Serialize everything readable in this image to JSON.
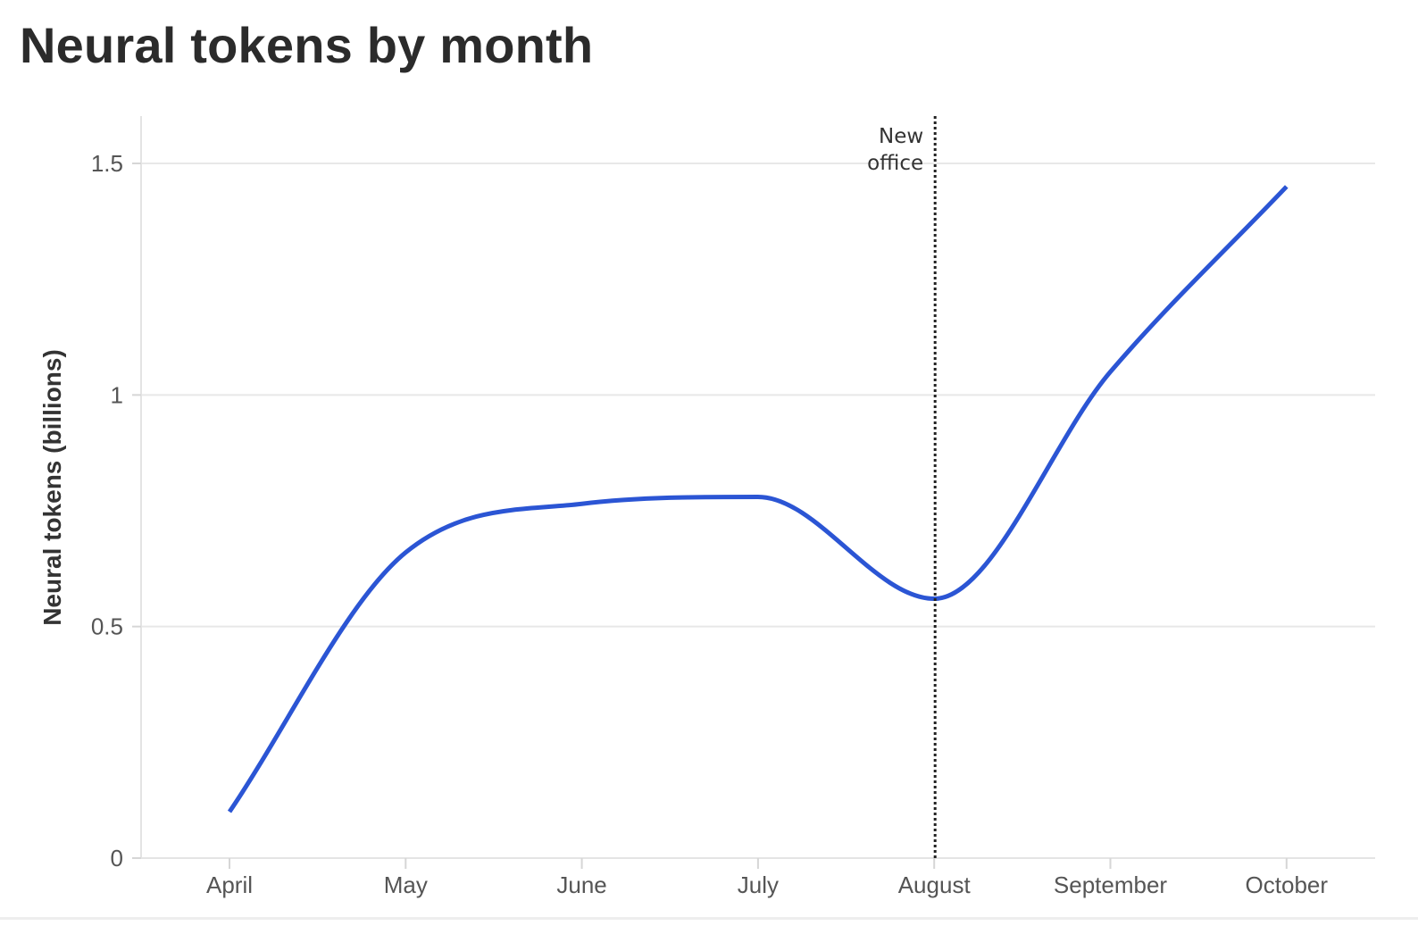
{
  "chart_data": {
    "type": "line",
    "title": "Neural tokens by month",
    "ylabel": "Neural tokens (billions)",
    "xlabel": "",
    "categories": [
      "April",
      "May",
      "June",
      "July",
      "August",
      "September",
      "October"
    ],
    "series": [
      {
        "values": [
          0.1,
          0.66,
          0.765,
          0.78,
          0.56,
          1.05,
          1.45
        ],
        "color": "#2b55d4"
      }
    ],
    "ylim": [
      0,
      1.6
    ],
    "yticks": [
      0,
      0.5,
      1,
      1.5
    ],
    "ytick_labels": [
      "0",
      "0.5",
      "1",
      "1.5"
    ],
    "grid": true,
    "curve": "smooth",
    "annotation": {
      "x": "August",
      "lines": [
        "New",
        "office"
      ],
      "style": "dotted",
      "color": "#222222"
    },
    "gridline_color": "#e8e8e8"
  }
}
